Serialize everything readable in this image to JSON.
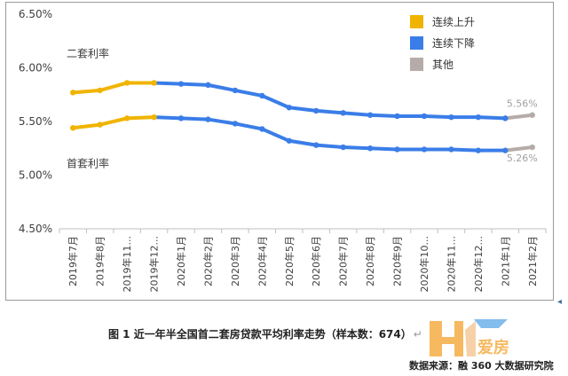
{
  "chart_data": {
    "type": "line",
    "categories": [
      "2019年7月",
      "2019年8月",
      "2019年11...",
      "2019年12...",
      "2020年1月",
      "2020年2月",
      "2020年3月",
      "2020年4月",
      "2020年5月",
      "2020年6月",
      "2020年7月",
      "2020年8月",
      "2020年9月",
      "2020年10...",
      "2020年11...",
      "2020年12...",
      "2021年1月",
      "2021年2月"
    ],
    "y_ticks": [
      "6.50%",
      "6.00%",
      "5.50%",
      "5.00%",
      "4.50%"
    ],
    "ylim": [
      4.5,
      6.5
    ],
    "series": [
      {
        "name": "二套利率",
        "values": [
          5.77,
          5.79,
          5.86,
          5.86,
          5.85,
          5.84,
          5.79,
          5.74,
          5.63,
          5.6,
          5.58,
          5.56,
          5.55,
          5.55,
          5.54,
          5.54,
          5.53,
          5.56
        ],
        "end_label": "5.56%"
      },
      {
        "name": "首套利率",
        "values": [
          5.44,
          5.47,
          5.53,
          5.54,
          5.53,
          5.52,
          5.48,
          5.43,
          5.32,
          5.28,
          5.26,
          5.25,
          5.24,
          5.24,
          5.24,
          5.23,
          5.23,
          5.26
        ],
        "end_label": "5.26%"
      }
    ],
    "segment_states": [
      "up",
      "up",
      "up",
      "down",
      "down",
      "down",
      "down",
      "down",
      "down",
      "down",
      "down",
      "down",
      "down",
      "down",
      "down",
      "down",
      "other"
    ],
    "legend": {
      "placement": "top-right",
      "items": [
        {
          "key": "up",
          "label": "连续上升",
          "color": "#f0b400"
        },
        {
          "key": "down",
          "label": "连续下降",
          "color": "#3a7de8"
        },
        {
          "key": "other",
          "label": "其他",
          "color": "#b5aca8"
        }
      ]
    },
    "grid": false
  },
  "caption": {
    "text": "图 1  近一年半全国首二套房贷款平均利率走势（样本数：674）",
    "mark": "↵"
  },
  "source": "数据来源：融 360 大数据研究院",
  "edge_mark": "◂",
  "watermark": {
    "text": "爱房",
    "colors": {
      "orange": "#f4a22a",
      "blue": "#5aa8e8"
    }
  }
}
